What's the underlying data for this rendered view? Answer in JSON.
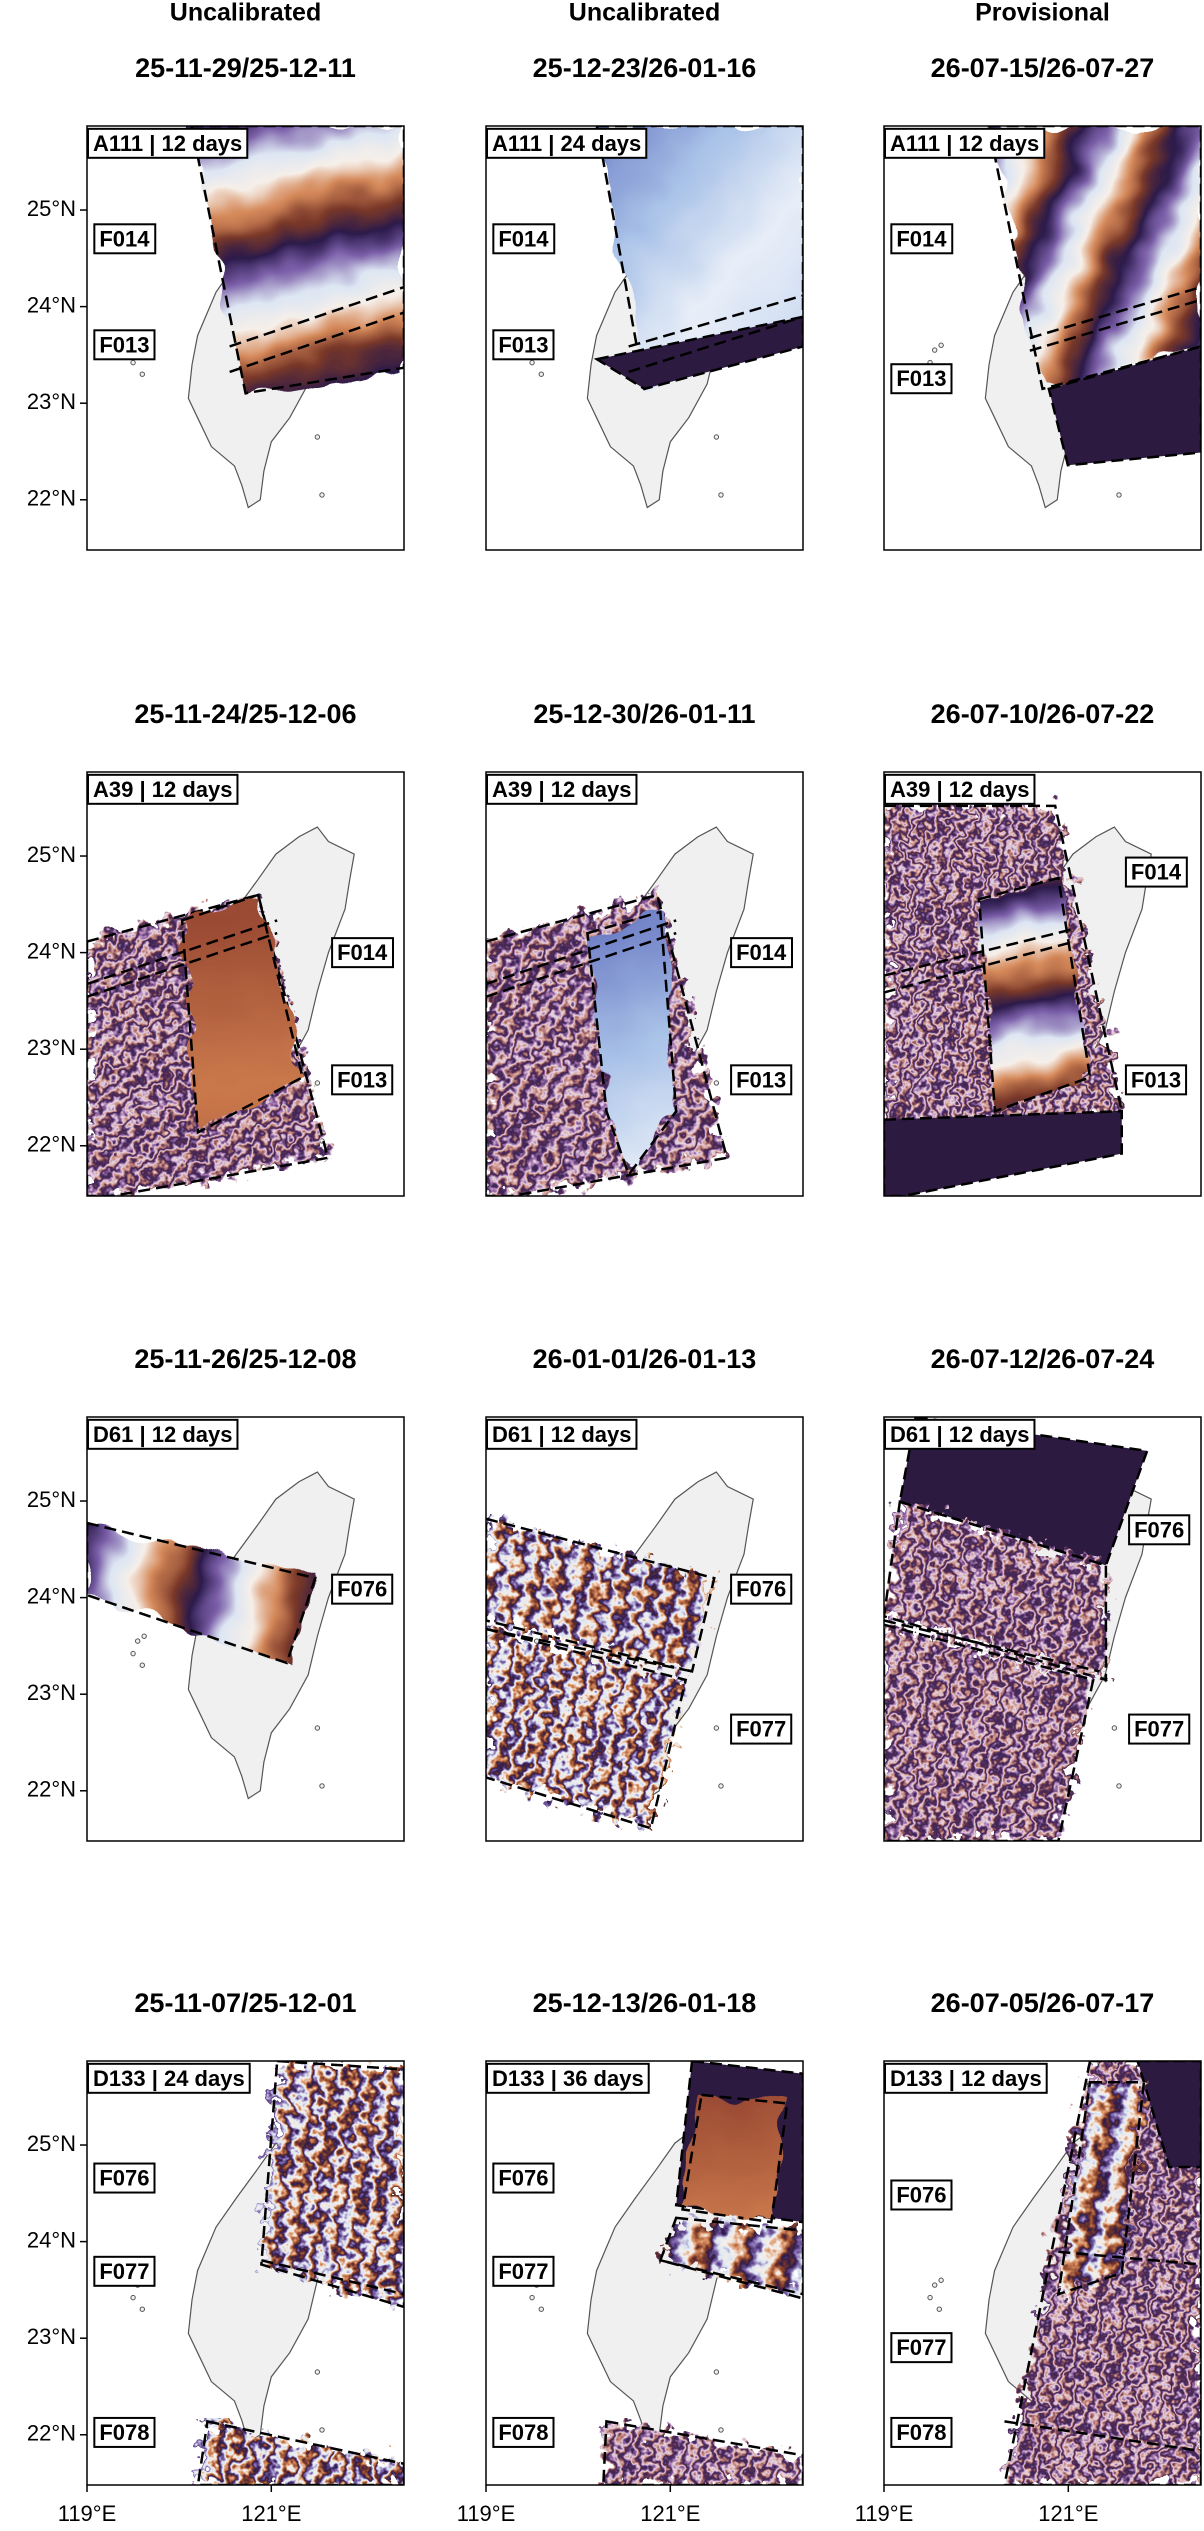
{
  "columns": [
    "Uncalibrated",
    "Uncalibrated",
    "Provisional"
  ],
  "map": {
    "xlim": [
      119,
      122.44
    ],
    "ylim": [
      21.48,
      25.87
    ],
    "xticks": [
      {
        "value": 119,
        "label": "119°E"
      },
      {
        "value": 121,
        "label": "121°E"
      }
    ],
    "yticks": [
      {
        "value": 22,
        "label": "22°N"
      },
      {
        "value": 23,
        "label": "23°N"
      },
      {
        "value": 24,
        "label": "24°N"
      },
      {
        "value": 25,
        "label": "25°N"
      }
    ]
  },
  "panels": [
    {
      "title": "25-11-29/25-12-11",
      "label": "A111 | 12 days",
      "frames": [
        "F014",
        "F013"
      ]
    },
    {
      "title": "25-12-23/26-01-16",
      "label": "A111 | 24 days",
      "frames": [
        "F014",
        "F013"
      ]
    },
    {
      "title": "26-07-15/26-07-27",
      "label": "A111 | 12 days",
      "frames": [
        "F014",
        "F013"
      ]
    },
    {
      "title": "25-11-24/25-12-06",
      "label": "A39 | 12 days",
      "frames": [
        "F014",
        "F013"
      ]
    },
    {
      "title": "25-12-30/26-01-11",
      "label": "A39 | 12 days",
      "frames": [
        "F014",
        "F013"
      ]
    },
    {
      "title": "26-07-10/26-07-22",
      "label": "A39 | 12 days",
      "frames": [
        "F014",
        "F013"
      ]
    },
    {
      "title": "25-11-26/25-12-08",
      "label": "D61 | 12 days",
      "frames": [
        "F076"
      ]
    },
    {
      "title": "26-01-01/26-01-13",
      "label": "D61 | 12 days",
      "frames": [
        "F076",
        "F077"
      ]
    },
    {
      "title": "26-07-12/26-07-24",
      "label": "D61 | 12 days",
      "frames": [
        "F076",
        "F077"
      ]
    },
    {
      "title": "25-11-07/25-12-01",
      "label": "D133 | 24 days",
      "frames": [
        "F076",
        "F077",
        "F078"
      ]
    },
    {
      "title": "25-12-13/26-01-18",
      "label": "D133 | 36 days",
      "frames": [
        "F076",
        "F077",
        "F078"
      ]
    },
    {
      "title": "26-07-05/26-07-17",
      "label": "D133 | 12 days",
      "frames": [
        "F076",
        "F077",
        "F078"
      ]
    }
  ]
}
